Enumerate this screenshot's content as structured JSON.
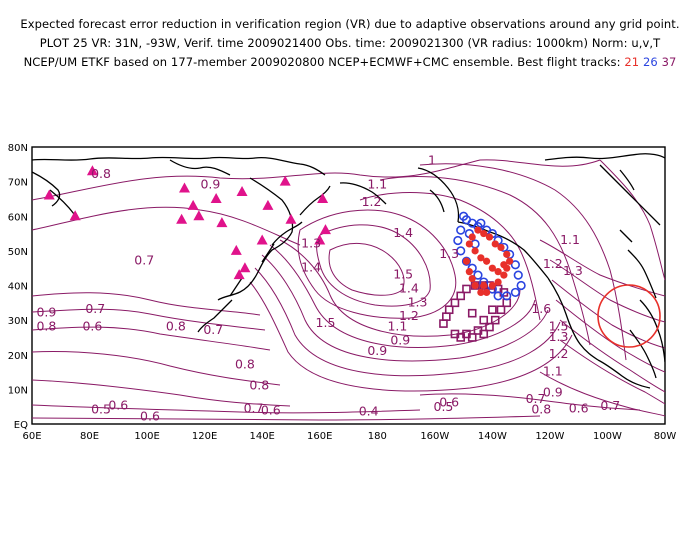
{
  "header": {
    "line1": "Expected forecast error reduction in verification region (VR) due to adaptive observations around any grid point.",
    "line2": "PLOT 25 VR: 31N, -93W, Verif. time 2009021400 Obs. time: 2009021300 (VR radius: 1000km) Norm: u,v,T",
    "line3_prefix": "NCEP/UM ETKF based on 177-member 2009020800 NCEP+ECMWF+CMC ensemble. Best flight tracks:",
    "track_21": "21",
    "track_26": "26",
    "track_37": "37"
  },
  "axes": {
    "lat_labels": [
      "80N",
      "70N",
      "60N",
      "50N",
      "40N",
      "30N",
      "20N",
      "10N",
      "EQ"
    ],
    "lon_labels": [
      "60E",
      "80E",
      "100E",
      "120E",
      "140E",
      "160E",
      "180",
      "160W",
      "140W",
      "120W",
      "100W",
      "80W"
    ]
  },
  "contour_labels": [
    {
      "text": "0.8",
      "lon": 84,
      "lat": 71
    },
    {
      "text": "0.9",
      "lon": 122,
      "lat": 68
    },
    {
      "text": "1",
      "lon": 199,
      "lat": 75
    },
    {
      "text": "1.1",
      "lon": 180,
      "lat": 68
    },
    {
      "text": "1.2",
      "lon": 178,
      "lat": 63
    },
    {
      "text": "1.4",
      "lon": 189,
      "lat": 54
    },
    {
      "text": "1.3",
      "lon": 205,
      "lat": 48
    },
    {
      "text": "1.1",
      "lon": 247,
      "lat": 52
    },
    {
      "text": "1.2",
      "lon": 241,
      "lat": 45
    },
    {
      "text": "1.3",
      "lon": 248,
      "lat": 43
    },
    {
      "text": "1.3",
      "lon": 157,
      "lat": 51
    },
    {
      "text": "1.4",
      "lon": 157,
      "lat": 44
    },
    {
      "text": "1.5",
      "lon": 189,
      "lat": 42
    },
    {
      "text": "1.4",
      "lon": 191,
      "lat": 38
    },
    {
      "text": "1.3",
      "lon": 194,
      "lat": 34
    },
    {
      "text": "1.2",
      "lon": 191,
      "lat": 30
    },
    {
      "text": "1.1",
      "lon": 187,
      "lat": 27
    },
    {
      "text": "0.9",
      "lon": 188,
      "lat": 23
    },
    {
      "text": "0.9",
      "lon": 180,
      "lat": 20
    },
    {
      "text": "1.5",
      "lon": 162,
      "lat": 28
    },
    {
      "text": "0.7",
      "lon": 99,
      "lat": 46
    },
    {
      "text": "0.9",
      "lon": 65,
      "lat": 31
    },
    {
      "text": "0.8",
      "lon": 65,
      "lat": 27
    },
    {
      "text": "0.7",
      "lon": 82,
      "lat": 32
    },
    {
      "text": "0.6",
      "lon": 81,
      "lat": 27
    },
    {
      "text": "0.8",
      "lon": 110,
      "lat": 27
    },
    {
      "text": "0.7",
      "lon": 123,
      "lat": 26
    },
    {
      "text": "0.8",
      "lon": 134,
      "lat": 16
    },
    {
      "text": "0.8",
      "lon": 139,
      "lat": 10
    },
    {
      "text": "0.6",
      "lon": 101,
      "lat": 1
    },
    {
      "text": "0.6",
      "lon": 90,
      "lat": -11
    },
    {
      "text": "0.5",
      "lon": 84,
      "lat": -16
    },
    {
      "text": "0.7",
      "lon": 137,
      "lat": -15
    },
    {
      "text": "0.6",
      "lon": 143,
      "lat": -17
    },
    {
      "text": "0.4",
      "lon": 177,
      "lat": -18
    },
    {
      "text": "0.6",
      "lon": 205,
      "lat": -8
    },
    {
      "text": "0.5",
      "lon": 203,
      "lat": -13
    },
    {
      "text": "0.7",
      "lon": 235,
      "lat": -4
    },
    {
      "text": "0.8",
      "lon": 237,
      "lat": 3
    },
    {
      "text": "0.9",
      "lon": 241,
      "lat": 8
    },
    {
      "text": "1.1",
      "lon": 241,
      "lat": 14
    },
    {
      "text": "1.2",
      "lon": 243,
      "lat": 19
    },
    {
      "text": "1.3",
      "lon": 243,
      "lat": 24
    },
    {
      "text": "1.5",
      "lon": 243,
      "lat": 27
    },
    {
      "text": "1.6",
      "lon": 237,
      "lat": 32
    },
    {
      "text": "0.7",
      "lon": 261,
      "lat": 4
    },
    {
      "text": "0.6",
      "lon": 250,
      "lat": -15
    }
  ],
  "triangles": [
    [
      66,
      66
    ],
    [
      75,
      60
    ],
    [
      81,
      73
    ],
    [
      113,
      68
    ],
    [
      112,
      59
    ],
    [
      116,
      63
    ],
    [
      118,
      60
    ],
    [
      124,
      65
    ],
    [
      126,
      58
    ],
    [
      133,
      67
    ],
    [
      131,
      50
    ],
    [
      134,
      45
    ],
    [
      132,
      43
    ],
    [
      140,
      53
    ],
    [
      142,
      63
    ],
    [
      148,
      70
    ],
    [
      150,
      59
    ],
    [
      161,
      65
    ],
    [
      160,
      53
    ],
    [
      162,
      56
    ]
  ],
  "track_red": [
    [
      211,
      47
    ],
    [
      212,
      44
    ],
    [
      213,
      42
    ],
    [
      214,
      40
    ],
    [
      216,
      38
    ],
    [
      217,
      40
    ],
    [
      218,
      38
    ],
    [
      220,
      40
    ],
    [
      222,
      41
    ],
    [
      224,
      43
    ],
    [
      225,
      45
    ],
    [
      226,
      47
    ],
    [
      225,
      49
    ],
    [
      223,
      51
    ],
    [
      221,
      52
    ],
    [
      219,
      54
    ],
    [
      217,
      55
    ],
    [
      215,
      56
    ],
    [
      213,
      54
    ],
    [
      212,
      52
    ],
    [
      214,
      50
    ],
    [
      216,
      48
    ],
    [
      218,
      47
    ],
    [
      220,
      45
    ],
    [
      222,
      44
    ],
    [
      224,
      46
    ]
  ],
  "track_blue": [
    [
      210,
      60
    ],
    [
      213,
      58
    ],
    [
      215,
      57
    ],
    [
      218,
      56
    ],
    [
      220,
      55
    ],
    [
      222,
      53
    ],
    [
      224,
      51
    ],
    [
      226,
      49
    ],
    [
      228,
      46
    ],
    [
      229,
      43
    ],
    [
      230,
      40
    ],
    [
      228,
      38
    ],
    [
      225,
      37
    ],
    [
      222,
      37
    ],
    [
      220,
      39
    ],
    [
      217,
      41
    ],
    [
      215,
      43
    ],
    [
      213,
      45
    ],
    [
      211,
      47
    ],
    [
      209,
      50
    ],
    [
      208,
      53
    ],
    [
      209,
      56
    ],
    [
      211,
      59
    ],
    [
      216,
      58
    ],
    [
      212,
      55
    ],
    [
      214,
      52
    ]
  ],
  "track_magenta": [
    [
      207,
      26
    ],
    [
      209,
      25
    ],
    [
      211,
      26
    ],
    [
      213,
      25
    ],
    [
      215,
      27
    ],
    [
      217,
      26
    ],
    [
      219,
      28
    ],
    [
      221,
      30
    ],
    [
      223,
      33
    ],
    [
      225,
      35
    ],
    [
      224,
      38
    ],
    [
      222,
      39
    ],
    [
      219,
      40
    ],
    [
      217,
      40
    ],
    [
      214,
      40
    ],
    [
      211,
      39
    ],
    [
      209,
      37
    ],
    [
      207,
      35
    ],
    [
      205,
      33
    ],
    [
      204,
      31
    ],
    [
      203,
      29
    ],
    [
      213,
      32
    ],
    [
      217,
      30
    ],
    [
      220,
      33
    ]
  ],
  "verification_region": {
    "lat": 31,
    "lon": -93,
    "radius_km": 1000
  }
}
